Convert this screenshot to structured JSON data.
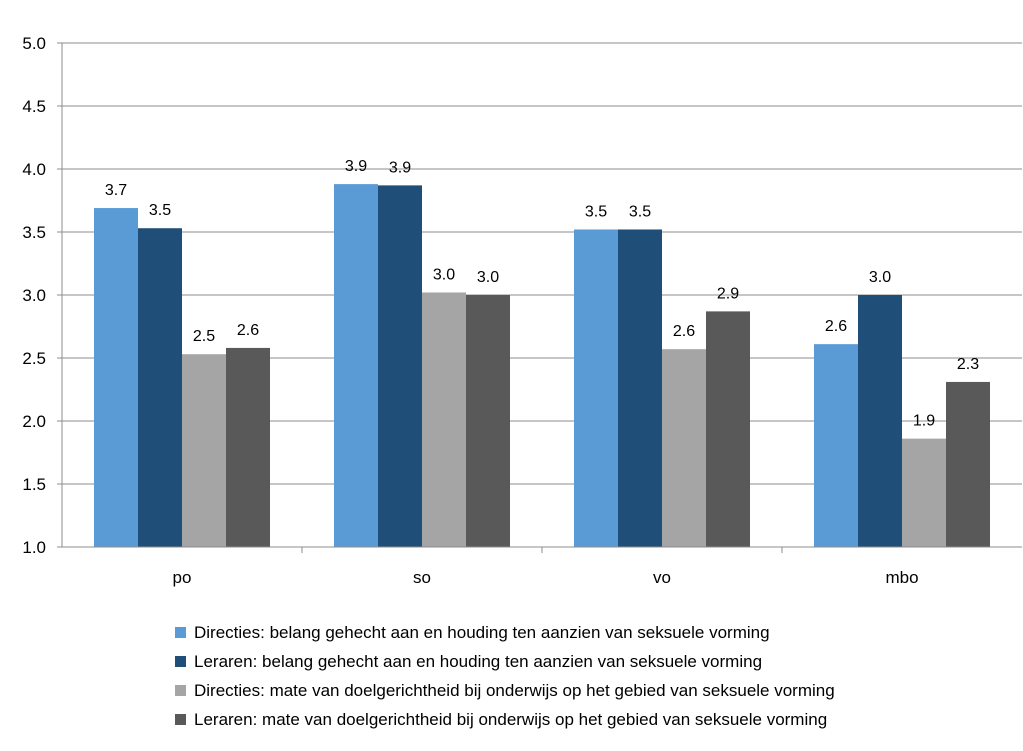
{
  "chart_data": {
    "type": "bar",
    "categories": [
      "po",
      "so",
      "vo",
      "mbo"
    ],
    "series": [
      {
        "name": "Directies: belang gehecht aan en houding ten aanzien van seksuele vorming",
        "color": "#5b9bd5",
        "values": [
          3.69,
          3.88,
          3.52,
          2.61
        ],
        "labels": [
          "3.7",
          "3.9",
          "3.5",
          "2.6"
        ]
      },
      {
        "name": "Leraren: belang gehecht aan en houding ten aanzien van seksuele vorming",
        "color": "#1f4e79",
        "values": [
          3.53,
          3.87,
          3.52,
          3.0
        ],
        "labels": [
          "3.5",
          "3.9",
          "3.5",
          "3.0"
        ]
      },
      {
        "name": "Directies: mate van doelgerichtheid bij onderwijs op het gebied van seksuele vorming",
        "color": "#a5a5a5",
        "values": [
          2.53,
          3.02,
          2.57,
          1.86
        ],
        "labels": [
          "2.5",
          "3.0",
          "2.6",
          "1.9"
        ]
      },
      {
        "name": "Leraren: mate van doelgerichtheid bij onderwijs op het gebied van seksuele vorming",
        "color": "#595959",
        "values": [
          2.58,
          3.0,
          2.87,
          2.31
        ],
        "labels": [
          "2.6",
          "3.0",
          "2.9",
          "2.3"
        ]
      }
    ],
    "yticks": [
      "1.0",
      "1.5",
      "2.0",
      "2.5",
      "3.0",
      "3.5",
      "4.0",
      "4.5",
      "5.0"
    ],
    "ylim": [
      1.0,
      5.0
    ],
    "grid": true,
    "legend_position": "bottom"
  }
}
